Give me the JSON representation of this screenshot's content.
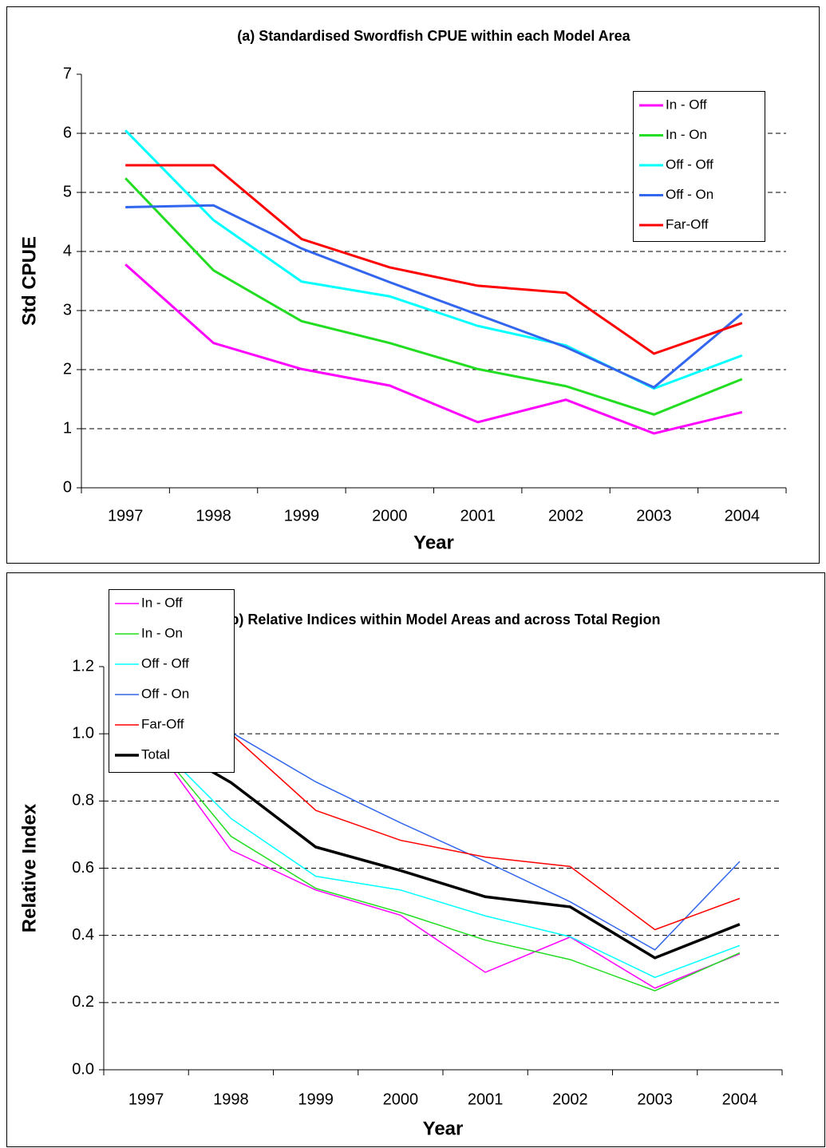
{
  "chart_data": [
    {
      "type": "line",
      "title": "(a) Standardised Swordfish CPUE within each Model Area",
      "xlabel": "Year",
      "ylabel": "Std CPUE",
      "categories": [
        "1997",
        "1998",
        "1999",
        "2000",
        "2001",
        "2002",
        "2003",
        "2004"
      ],
      "ylim": [
        0,
        7
      ],
      "yticks": [
        0,
        1,
        2,
        3,
        4,
        5,
        6,
        7
      ],
      "grid": true,
      "legend": "upper right",
      "series": [
        {
          "name": "In - Off",
          "color": "#ff00ff",
          "values": [
            3.78,
            2.45,
            2.01,
            1.73,
            1.11,
            1.49,
            0.92,
            1.28
          ]
        },
        {
          "name": "In - On",
          "color": "#22dd22",
          "values": [
            5.24,
            3.68,
            2.82,
            2.45,
            2.01,
            1.72,
            1.24,
            1.84
          ]
        },
        {
          "name": "Off - Off",
          "color": "#00ffff",
          "values": [
            6.05,
            4.53,
            3.49,
            3.24,
            2.74,
            2.41,
            1.68,
            2.24
          ]
        },
        {
          "name": "Off - On",
          "color": "#3366ee",
          "values": [
            4.75,
            4.78,
            4.05,
            3.48,
            2.93,
            2.38,
            1.7,
            2.95
          ]
        },
        {
          "name": "Far-Off",
          "color": "#ff0000",
          "values": [
            5.46,
            5.46,
            4.21,
            3.73,
            3.42,
            3.3,
            2.27,
            2.79
          ]
        }
      ]
    },
    {
      "type": "line",
      "title": "(b) Relative Indices within Model Areas and across Total Region",
      "xlabel": "Year",
      "ylabel": "Relative Index",
      "categories": [
        "1997",
        "1998",
        "1999",
        "2000",
        "2001",
        "2002",
        "2003",
        "2004"
      ],
      "ylim": [
        0,
        1.2
      ],
      "yticks": [
        {
          "value": 0,
          "label": "0.0"
        },
        0.2,
        0.4,
        0.6,
        0.8,
        {
          "value": 1,
          "label": "1.0"
        },
        1.2
      ],
      "grid": true,
      "legend": "lower left",
      "series": [
        {
          "name": "In - Off",
          "color": "#ff00ff",
          "values": [
            1,
            0.654,
            0.535,
            0.46,
            0.29,
            0.395,
            0.243,
            0.345
          ]
        },
        {
          "name": "In - On",
          "color": "#22dd22",
          "values": [
            1,
            0.695,
            0.54,
            0.468,
            0.386,
            0.328,
            0.235,
            0.348
          ]
        },
        {
          "name": "Off - Off",
          "color": "#00ffff",
          "values": [
            1,
            0.748,
            0.576,
            0.535,
            0.458,
            0.396,
            0.275,
            0.37
          ]
        },
        {
          "name": "Off - On",
          "color": "#3366ee",
          "values": [
            1,
            1.005,
            0.857,
            0.735,
            0.62,
            0.5,
            0.357,
            0.62
          ]
        },
        {
          "name": "Far-Off",
          "color": "#ff0000",
          "values": [
            1,
            1.0,
            0.772,
            0.683,
            0.633,
            0.605,
            0.417,
            0.51
          ]
        },
        {
          "name": "Total",
          "color": "#000000",
          "values": [
            1,
            0.855,
            0.663,
            0.593,
            0.515,
            0.485,
            0.333,
            0.433
          ]
        }
      ]
    }
  ]
}
